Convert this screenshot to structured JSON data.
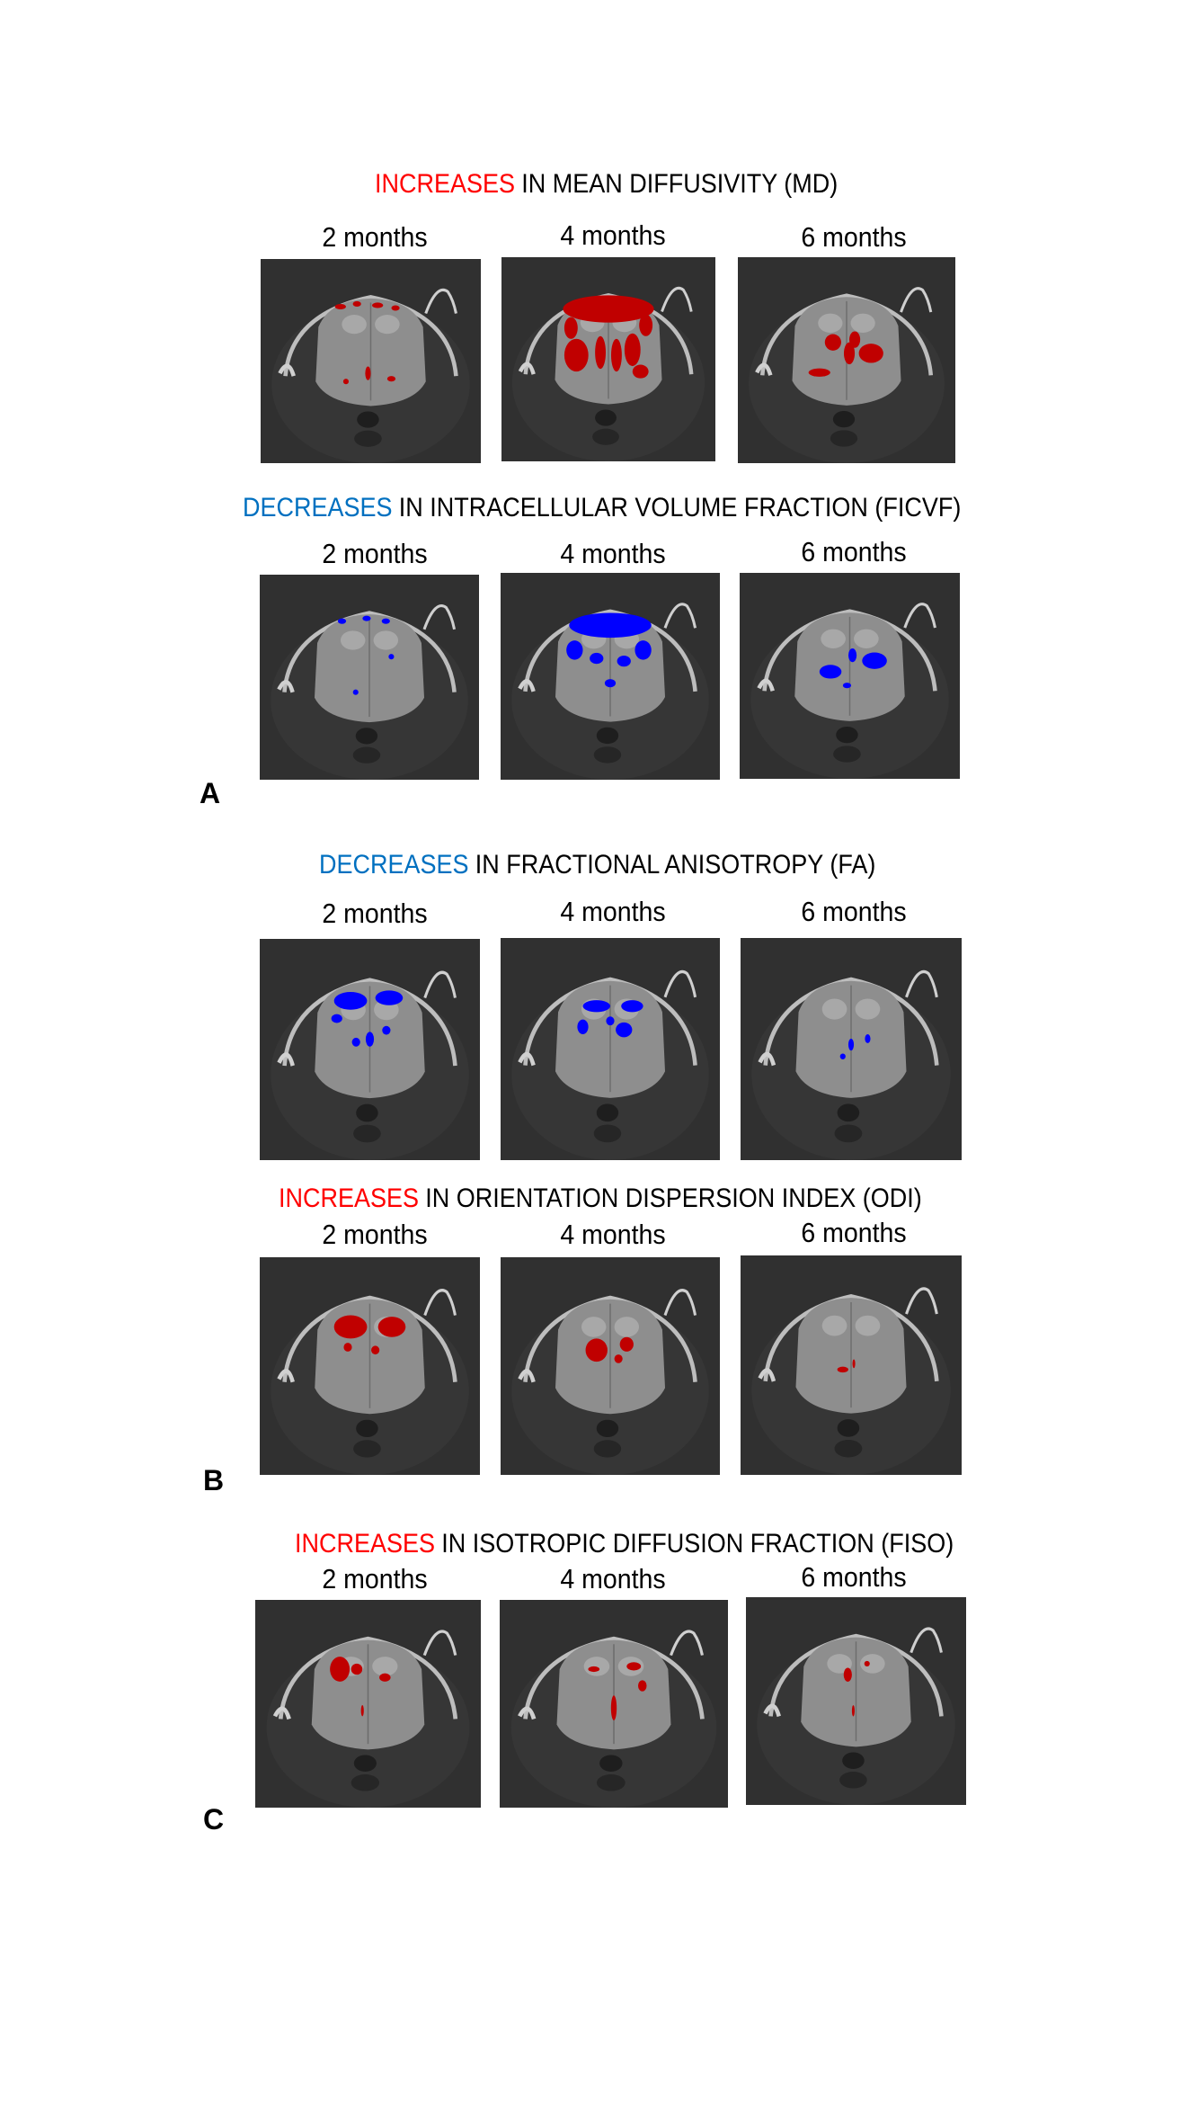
{
  "colors": {
    "increase_text": "#ff0000",
    "decrease_text": "#0070c0",
    "increase_overlay": "#c00000",
    "decrease_overlay": "#0000ff"
  },
  "sections": [
    {
      "highlight": "INCREASES",
      "highlight_type": "increase",
      "rest": "IN MEAN DIFFUSIVITY (MD)",
      "timepoints": [
        "2 months",
        "4 months",
        "6 months"
      ]
    },
    {
      "highlight": "DECREASES",
      "highlight_type": "decrease",
      "rest": "IN INTRACELLULAR VOLUME FRACTION (FICVF)",
      "timepoints": [
        "2 months",
        "4 months",
        "6 months"
      ]
    },
    {
      "highlight": "DECREASES",
      "highlight_type": "decrease",
      "rest": "IN FRACTIONAL ANISOTROPY (FA)",
      "timepoints": [
        "2 months",
        "4 months",
        "6 months"
      ]
    },
    {
      "highlight": "INCREASES",
      "highlight_type": "increase",
      "rest": "IN ORIENTATION DISPERSION INDEX (ODI)",
      "timepoints": [
        "2 months",
        "4 months",
        "6 months"
      ]
    },
    {
      "highlight": "INCREASES",
      "highlight_type": "increase",
      "rest": "IN ISOTROPIC DIFFUSION FRACTION (FISO)",
      "timepoints": [
        "2 months",
        "4 months",
        "6 months"
      ]
    }
  ],
  "panel_labels": [
    "A",
    "B",
    "C"
  ]
}
